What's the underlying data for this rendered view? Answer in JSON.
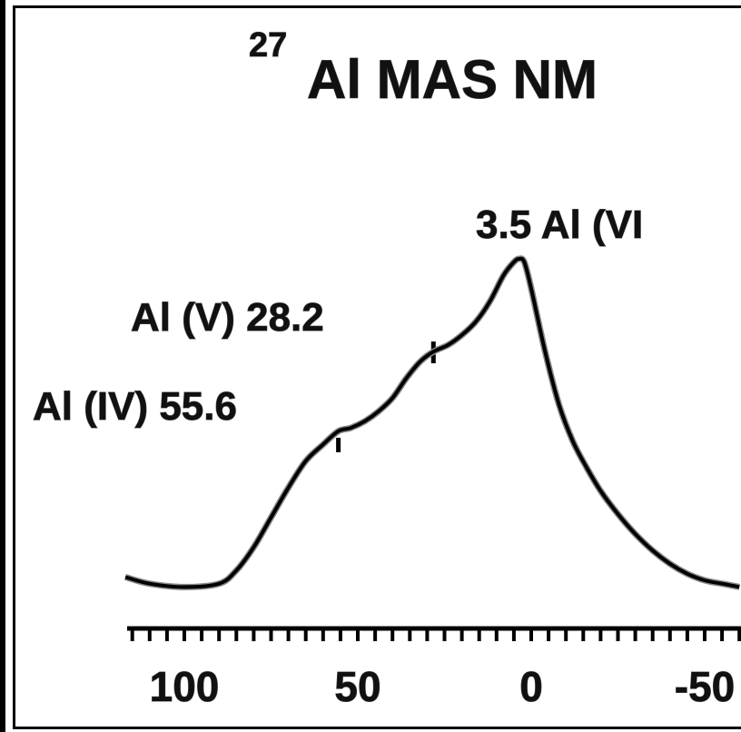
{
  "chart_data": {
    "type": "line",
    "title_sup": "27",
    "title": "Al MAS NM",
    "xlabel": "",
    "ylabel": "",
    "x_reversed": true,
    "xlim": [
      120,
      -60
    ],
    "x_ticks": [
      100,
      50,
      0,
      -50
    ],
    "x_tick_labels": [
      "100",
      "50",
      "0",
      "-50"
    ],
    "x_minor_step": 5,
    "peaks": [
      {
        "label": "3.5 Al (VI",
        "position": 3.5
      },
      {
        "label": "Al (V)  28.2",
        "position": 28.2
      },
      {
        "label": "Al (IV)  55.6",
        "position": 55.6
      }
    ],
    "series": [
      {
        "x": [
          117,
          110,
          100,
          90,
          85,
          80,
          75,
          70,
          65,
          60,
          55.6,
          52,
          48,
          44,
          40,
          36,
          32,
          28.2,
          24,
          20,
          16,
          12,
          8,
          5,
          3.5,
          2,
          0,
          -4,
          -8,
          -12,
          -16,
          -20,
          -25,
          -30,
          -35,
          -40,
          -45,
          -50,
          -55,
          -60
        ],
        "y": [
          0.04,
          0.02,
          0.01,
          0.02,
          0.06,
          0.13,
          0.22,
          0.31,
          0.39,
          0.44,
          0.48,
          0.49,
          0.51,
          0.54,
          0.58,
          0.64,
          0.69,
          0.72,
          0.74,
          0.77,
          0.81,
          0.87,
          0.95,
          0.99,
          1.0,
          0.99,
          0.91,
          0.72,
          0.56,
          0.45,
          0.37,
          0.3,
          0.23,
          0.17,
          0.12,
          0.08,
          0.05,
          0.03,
          0.02,
          0.01
        ]
      }
    ]
  }
}
